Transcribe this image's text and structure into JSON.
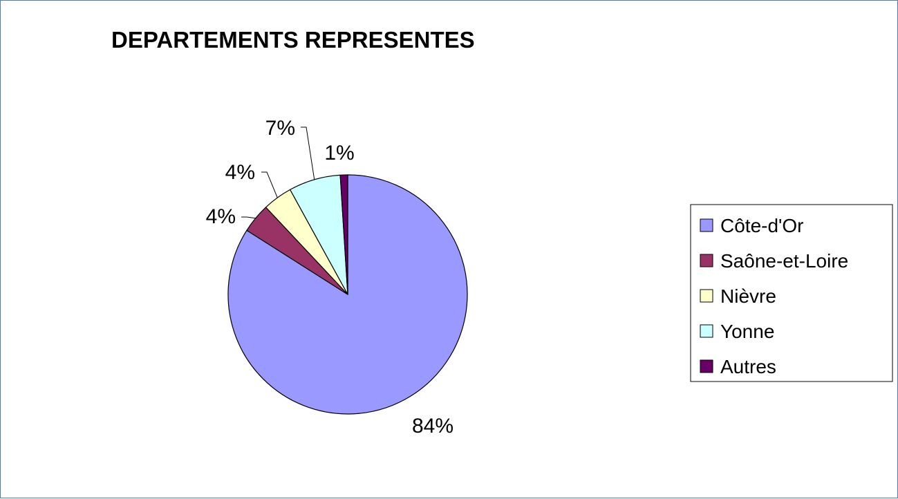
{
  "chart_data": {
    "type": "pie",
    "title": "DEPARTEMENTS REPRESENTES",
    "categories": [
      "Côte-d'Or",
      "Saône-et-Loire",
      "Nièvre",
      "Yonne",
      "Autres"
    ],
    "values": [
      84,
      4,
      4,
      7,
      1
    ],
    "labels": [
      "84%",
      "4%",
      "4%",
      "7%",
      "1%"
    ],
    "colors": [
      "#9999ff",
      "#993366",
      "#ffffcc",
      "#ccffff",
      "#660066"
    ],
    "start_angle_deg": 0,
    "direction": "clockwise",
    "legend_position": "right",
    "grid": false
  }
}
